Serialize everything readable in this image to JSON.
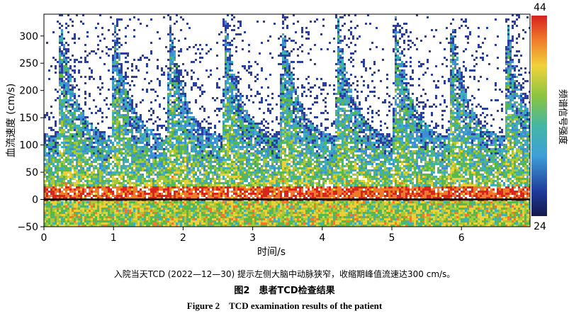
{
  "chart_data": {
    "type": "heatmap",
    "title": "",
    "xlabel": "时间/s",
    "ylabel": "血流速度 (cm/s)",
    "xlim": [
      0,
      7
    ],
    "ylim": [
      -50,
      340
    ],
    "x_ticks": [
      0,
      1,
      2,
      3,
      4,
      5,
      6
    ],
    "y_ticks": [
      -50,
      0,
      50,
      100,
      150,
      200,
      250,
      300
    ],
    "colorbar": {
      "label": "频谱信号强度",
      "max": 44,
      "min": 24
    },
    "peak_times": [
      0.18,
      0.95,
      1.75,
      2.55,
      3.37,
      4.17,
      5.0,
      5.8,
      6.6
    ],
    "peak_velocity": 300,
    "baseline_velocity": 0,
    "colors": {
      "low": "#1c2a8a",
      "mid": "#4ab048",
      "high": "#e0301e",
      "baseline": "#000000"
    }
  },
  "caption": {
    "note": "入院当天TCD (2022—12—30) 提示左侧大脑中动脉狭窄，收缩期峰值流速达300 cm/s。",
    "cn": "图2　患者TCD检查结果",
    "en": "Figure 2　TCD examination results of the patient"
  }
}
